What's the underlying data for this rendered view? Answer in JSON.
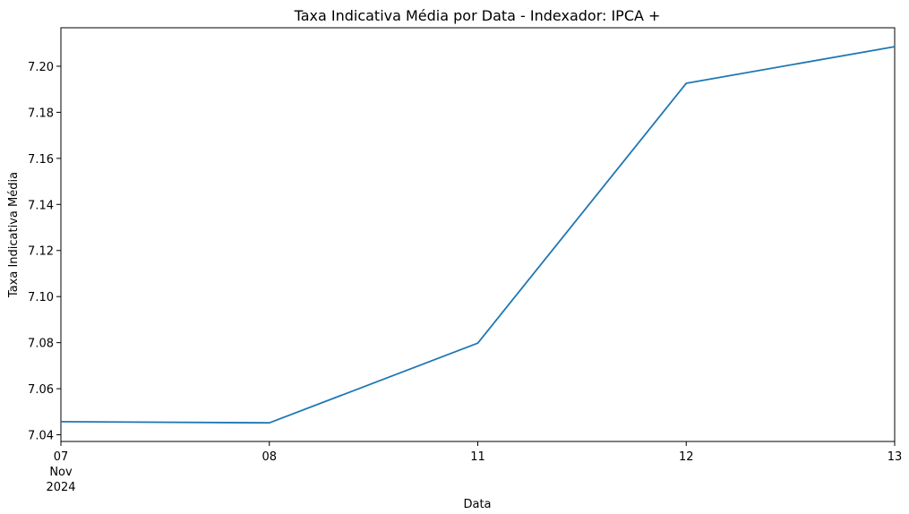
{
  "chart_data": {
    "type": "line",
    "title": "Taxa Indicativa Média por Data - Indexador: IPCA +",
    "xlabel": "Data",
    "ylabel": "Taxa Indicativa Média",
    "x": [
      "2024-11-07",
      "2024-11-08",
      "2024-11-11",
      "2024-11-12",
      "2024-11-13"
    ],
    "x_tick_labels": [
      "07",
      "08",
      "11",
      "12",
      "13"
    ],
    "x_tick_sublabels": [
      "Nov",
      "2024"
    ],
    "series": [
      {
        "values": [
          7.0457,
          7.0452,
          7.0798,
          7.1926,
          7.2085
        ],
        "color": "#1f77b4"
      }
    ],
    "y_ticks": [
      "7.04",
      "7.06",
      "7.08",
      "7.10",
      "7.12",
      "7.14",
      "7.16",
      "7.18",
      "7.20"
    ],
    "ylim": [
      7.0371,
      7.2167
    ],
    "grid": false,
    "legend": "none"
  }
}
